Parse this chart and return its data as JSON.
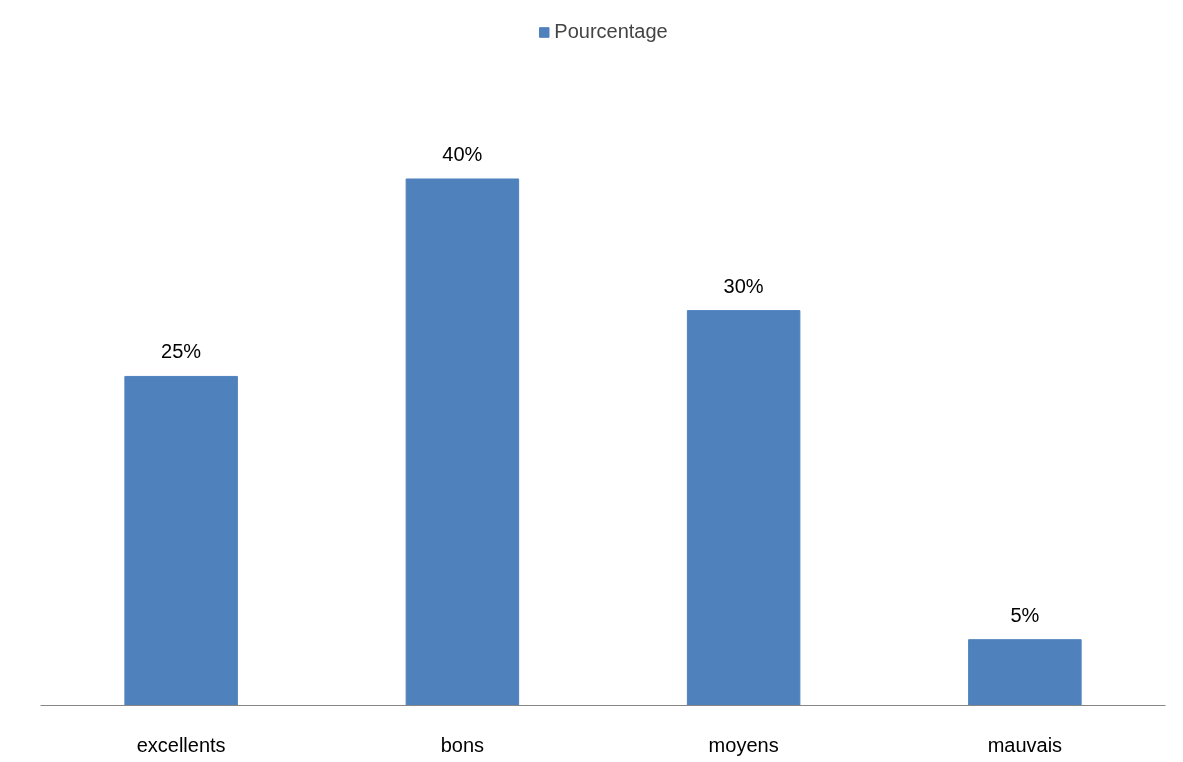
{
  "chart_data": {
    "type": "bar",
    "categories": [
      "excellents",
      "bons",
      "moyens",
      "mauvais"
    ],
    "series": [
      {
        "name": "Pourcentage",
        "color": "#4f81bd",
        "values": [
          25,
          40,
          30,
          5
        ],
        "value_labels": [
          "25%",
          "40%",
          "30%",
          "5%"
        ]
      }
    ],
    "legend": "top",
    "grid": false
  }
}
